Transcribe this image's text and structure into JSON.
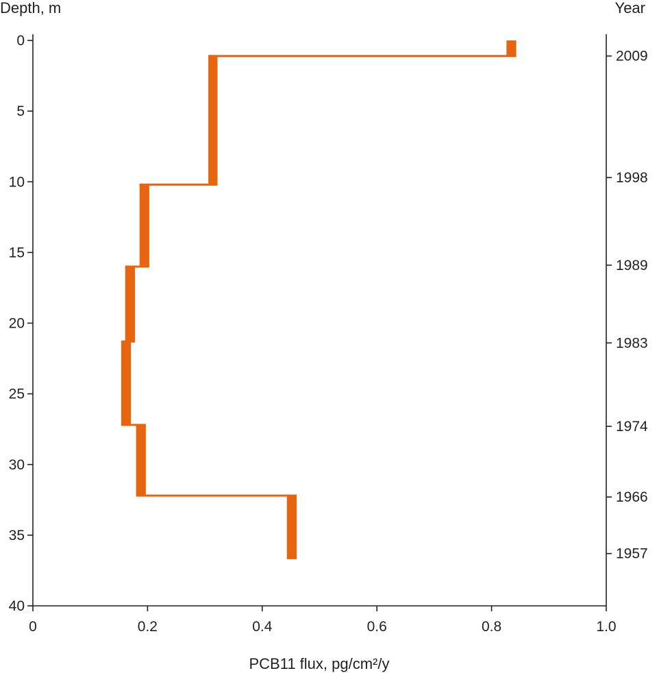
{
  "chart_data": {
    "type": "step-line",
    "xlabel": "PCB11 flux, pg/cm²/y",
    "ylabel": "Depth, m",
    "y2label": "Year",
    "xlim": [
      0,
      1.0
    ],
    "ylim": [
      0,
      40
    ],
    "y_inverted": true,
    "x_ticks": [
      {
        "value": 0,
        "label": "0"
      },
      {
        "value": 0.2,
        "label": "0.2"
      },
      {
        "value": 0.4,
        "label": "0.4"
      },
      {
        "value": 0.6,
        "label": "0.6"
      },
      {
        "value": 0.8,
        "label": "0.8"
      },
      {
        "value": 1.0,
        "label": "1.0"
      }
    ],
    "y_ticks": [
      {
        "value": 0,
        "label": "0"
      },
      {
        "value": 5,
        "label": "5"
      },
      {
        "value": 10,
        "label": "10"
      },
      {
        "value": 15,
        "label": "15"
      },
      {
        "value": 20,
        "label": "20"
      },
      {
        "value": 25,
        "label": "25"
      },
      {
        "value": 30,
        "label": "30"
      },
      {
        "value": 35,
        "label": "35"
      },
      {
        "value": 40,
        "label": "40"
      }
    ],
    "year_ticks": [
      {
        "depth": 1.1,
        "label": "2009"
      },
      {
        "depth": 9.7,
        "label": "1998"
      },
      {
        "depth": 15.9,
        "label": "1989"
      },
      {
        "depth": 21.4,
        "label": "1983"
      },
      {
        "depth": 27.3,
        "label": "1974"
      },
      {
        "depth": 32.3,
        "label": "1966"
      },
      {
        "depth": 36.3,
        "label": "1957"
      }
    ],
    "series": [
      {
        "color": "#e8650f",
        "segments": [
          {
            "top": 0.0,
            "bottom": 1.1,
            "x_low": 0.826,
            "x_high": 0.843
          },
          {
            "top": 1.1,
            "bottom": 10.2,
            "x_low": 0.306,
            "x_high": 0.322
          },
          {
            "top": 10.2,
            "bottom": 16.0,
            "x_low": 0.186,
            "x_high": 0.203
          },
          {
            "top": 16.0,
            "bottom": 21.3,
            "x_low": 0.161,
            "x_high": 0.178
          },
          {
            "top": 21.3,
            "bottom": 27.2,
            "x_low": 0.154,
            "x_high": 0.171
          },
          {
            "top": 27.2,
            "bottom": 32.2,
            "x_low": 0.18,
            "x_high": 0.197
          },
          {
            "top": 32.2,
            "bottom": 36.7,
            "x_low": 0.443,
            "x_high": 0.46
          }
        ]
      }
    ]
  }
}
